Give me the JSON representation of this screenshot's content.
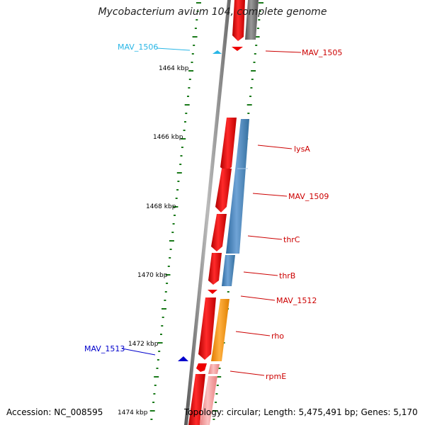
{
  "title": "Mycobacterium avium 104, complete genome",
  "footer": {
    "accession": "Accession: NC_008595",
    "topology": "Topology: circular; Length: 5,475,491 bp; Genes: 5,170"
  },
  "kbp_ticks": [
    "1464 kbp",
    "1466 kbp",
    "1468 kbp",
    "1470 kbp",
    "1472 kbp",
    "1474 kbp"
  ],
  "genes": [
    {
      "name": "MAV_1506",
      "color": "#29b6e6",
      "side": "left"
    },
    {
      "name": "MAV_1505",
      "color": "#cc0000",
      "side": "right"
    },
    {
      "name": "lysA",
      "color": "#cc0000",
      "side": "right"
    },
    {
      "name": "MAV_1509",
      "color": "#cc0000",
      "side": "right"
    },
    {
      "name": "thrC",
      "color": "#cc0000",
      "side": "right"
    },
    {
      "name": "thrB",
      "color": "#cc0000",
      "side": "right"
    },
    {
      "name": "MAV_1512",
      "color": "#cc0000",
      "side": "right"
    },
    {
      "name": "rho",
      "color": "#cc0000",
      "side": "right"
    },
    {
      "name": "MAV_1513",
      "color": "#0000cc",
      "side": "left"
    },
    {
      "name": "rpmE",
      "color": "#cc0000",
      "side": "right"
    }
  ],
  "colors": {
    "cds_forward": "#ee0000",
    "cds_reverse": "#4a86c0",
    "rho": "#ff9900",
    "rpmE_light": "#f4a0a0",
    "backbone": "#777777",
    "gc_dots": "#1a7a1a"
  }
}
